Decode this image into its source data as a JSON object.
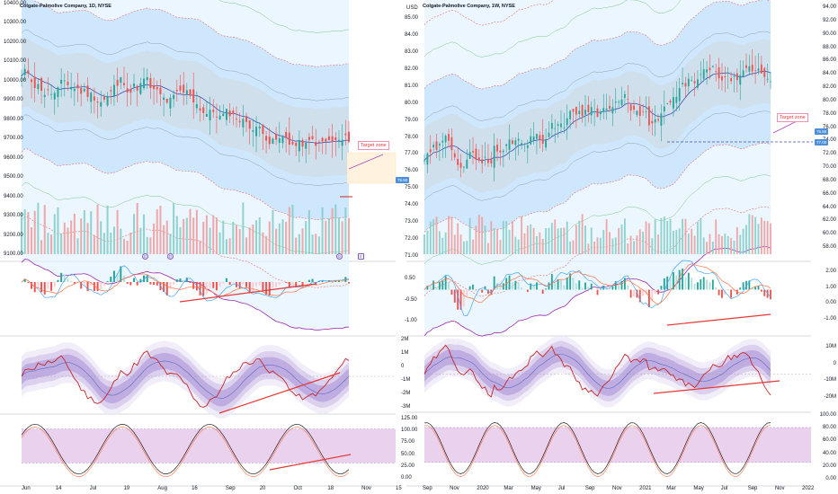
{
  "charts": {
    "left": {
      "title": "Colgate-Palmolive Company, 1D, NYSE",
      "price_axis": [
        "10400.00",
        "10300.00",
        "10200.00",
        "10100.00",
        "10000.00",
        "9900.00",
        "9800.00",
        "9700.00",
        "9600.00",
        "9500.00",
        "9400.00",
        "9300.00",
        "9200.00",
        "9100.00"
      ],
      "price_tag": "75.50",
      "target_label": "Target zone",
      "macd_axis": [],
      "pvt_axis": [
        "2M",
        "1M",
        "0",
        "-1M",
        "-2M",
        "-3M"
      ],
      "stoch_axis": [
        "125.00",
        "100.00",
        "75.00",
        "50.00",
        "25.00",
        "0.00"
      ],
      "time_axis": [
        "Jun",
        "14",
        "Jul",
        "19",
        "Aug",
        "16",
        "Sep",
        "20",
        "Oct",
        "18",
        "Nov",
        "15"
      ],
      "event_badges": [
        "D",
        "D",
        "D"
      ],
      "flag": "E"
    },
    "right": {
      "title": "Colgate-Palmolive Company, 1W, NYSE",
      "axis_unit": "USD",
      "price_axis_left": [
        "85.00",
        "84.00",
        "83.00",
        "82.00",
        "81.00",
        "80.00",
        "79.00",
        "78.00",
        "77.00",
        "76.00",
        "75.00",
        "74.00",
        "73.00",
        "72.00",
        "71.00"
      ],
      "price_axis_right": [
        "94.00",
        "92.00",
        "90.00",
        "88.00",
        "86.00",
        "84.00",
        "82.00",
        "80.00",
        "78.00",
        "76.00",
        "74.00",
        "72.00",
        "70.00",
        "68.00",
        "66.00",
        "64.00",
        "62.00",
        "60.00",
        "58.00"
      ],
      "price_tag": "75.50",
      "price_tag2": "77.00",
      "target_label": "Target zone",
      "macd_axis": [
        "2.00",
        "1.00",
        "0.00",
        "-1.00"
      ],
      "macd_axis_left": [
        "0.50",
        "-0.50",
        "-1.00"
      ],
      "pvt_axis": [
        "10M",
        "0",
        "-10M",
        "-20M"
      ],
      "stoch_axis": [
        "100.00",
        "80.00",
        "60.00",
        "40.00",
        "20.00",
        "0.00"
      ],
      "time_axis": [
        "Sep",
        "Nov",
        "2020",
        "Mar",
        "May",
        "Jul",
        "Sep",
        "Nov",
        "2021",
        "Mar",
        "May",
        "Jul",
        "Sep",
        "Nov",
        "2022"
      ]
    },
    "colors": {
      "up": "#26a69a",
      "down": "#ef5350",
      "band_purple": "#9c27b0",
      "band_red": "#e57373",
      "macd_orange": "#ff7043",
      "signal_blue": "#42a5f5",
      "stoch_fill": "#e1bee7",
      "target_red": "#e53935"
    }
  }
}
